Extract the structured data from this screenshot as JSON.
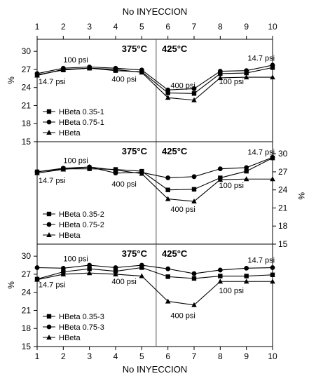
{
  "chart_data": {
    "type": "line",
    "title": "",
    "x_title_top": "No INYECCION",
    "x_title_bottom": "No INYECCION",
    "x": [
      1,
      2,
      3,
      4,
      5,
      6,
      7,
      8,
      9,
      10
    ],
    "xlim": [
      1,
      10
    ],
    "ylabel": "%",
    "grid": false,
    "divider_x": 5.55,
    "panels": [
      {
        "ylim": [
          15,
          32
        ],
        "yticks": [
          15,
          18,
          21,
          24,
          27,
          30
        ],
        "y_axis_side": "left",
        "temp_left": "375°C",
        "temp_right": "425°C",
        "annotations": [
          {
            "text": "14.7 psi",
            "x": 1.05,
            "y": 25.0
          },
          {
            "text": "100 psi",
            "x": 2.0,
            "y": 28.6
          },
          {
            "text": "400 psi",
            "x": 3.85,
            "y": 25.4
          },
          {
            "text": "400 psi",
            "x": 6.1,
            "y": 24.4
          },
          {
            "text": "100 psi",
            "x": 7.95,
            "y": 25.0
          },
          {
            "text": "14.7 psi",
            "x": 9.05,
            "y": 28.9
          }
        ],
        "series": [
          {
            "name": "HBeta 0.35-1",
            "marker": "square",
            "values": [
              26.1,
              26.9,
              27.2,
              26.8,
              26.6,
              23.1,
              23.0,
              26.3,
              26.4,
              27.3
            ]
          },
          {
            "name": "HBeta 0.75-1",
            "marker": "circle",
            "values": [
              26.3,
              27.2,
              27.4,
              27.2,
              26.9,
              23.6,
              23.8,
              26.7,
              26.8,
              27.7
            ]
          },
          {
            "name": "HBeta",
            "marker": "triangle",
            "values": [
              26.0,
              27.0,
              27.2,
              27.0,
              26.5,
              22.3,
              21.9,
              25.6,
              25.7,
              25.7
            ]
          }
        ]
      },
      {
        "ylim": [
          15,
          32
        ],
        "yticks": [
          15,
          18,
          21,
          24,
          27,
          30
        ],
        "y_axis_side": "right",
        "temp_left": "375°C",
        "temp_right": "425°C",
        "annotations": [
          {
            "text": "14.7 psi",
            "x": 1.05,
            "y": 25.6
          },
          {
            "text": "100 psi",
            "x": 2.0,
            "y": 28.9
          },
          {
            "text": "400 psi",
            "x": 3.85,
            "y": 25.0
          },
          {
            "text": "400 psi",
            "x": 6.1,
            "y": 20.8
          },
          {
            "text": "100 psi",
            "x": 7.95,
            "y": 24.8
          },
          {
            "text": "14.7 psi",
            "x": 9.05,
            "y": 30.3
          }
        ],
        "series": [
          {
            "name": "HBeta 0.35-2",
            "marker": "square",
            "values": [
              27.0,
              27.5,
              27.5,
              27.4,
              27.1,
              24.0,
              24.1,
              26.0,
              27.1,
              29.3
            ]
          },
          {
            "name": "HBeta 0.75-2",
            "marker": "circle",
            "values": [
              27.0,
              27.6,
              27.8,
              26.8,
              26.9,
              26.0,
              26.2,
              27.5,
              27.7,
              29.4
            ]
          },
          {
            "name": "HBeta",
            "marker": "triangle",
            "values": [
              26.8,
              27.4,
              27.8,
              27.3,
              26.7,
              22.5,
              22.1,
              25.7,
              25.8,
              25.8
            ]
          }
        ]
      },
      {
        "ylim": [
          15,
          32
        ],
        "yticks": [
          15,
          18,
          21,
          24,
          27,
          30
        ],
        "y_axis_side": "left",
        "temp_left": "375°C",
        "temp_right": "425°C",
        "annotations": [
          {
            "text": "14.7 psi",
            "x": 1.05,
            "y": 25.3
          },
          {
            "text": "100 psi",
            "x": 2.0,
            "y": 29.6
          },
          {
            "text": "400 psi",
            "x": 3.85,
            "y": 25.8
          },
          {
            "text": "400 psi",
            "x": 6.1,
            "y": 20.2
          },
          {
            "text": "100 psi",
            "x": 7.95,
            "y": 24.3
          },
          {
            "text": "14.7 psi",
            "x": 9.05,
            "y": 29.4
          }
        ],
        "series": [
          {
            "name": "HBeta 0.35-3",
            "marker": "square",
            "values": [
              26.2,
              27.4,
              27.9,
              27.5,
              28.1,
              26.6,
              26.3,
              26.7,
              26.7,
              26.9
            ]
          },
          {
            "name": "HBeta 0.75-3",
            "marker": "circle",
            "values": [
              28.1,
              28.0,
              28.5,
              28.1,
              28.5,
              27.9,
              27.1,
              27.7,
              28.0,
              28.1
            ]
          },
          {
            "name": "HBeta",
            "marker": "triangle",
            "values": [
              26.1,
              27.0,
              27.2,
              27.0,
              26.7,
              22.5,
              21.9,
              25.8,
              25.8,
              25.8
            ]
          }
        ]
      }
    ]
  }
}
